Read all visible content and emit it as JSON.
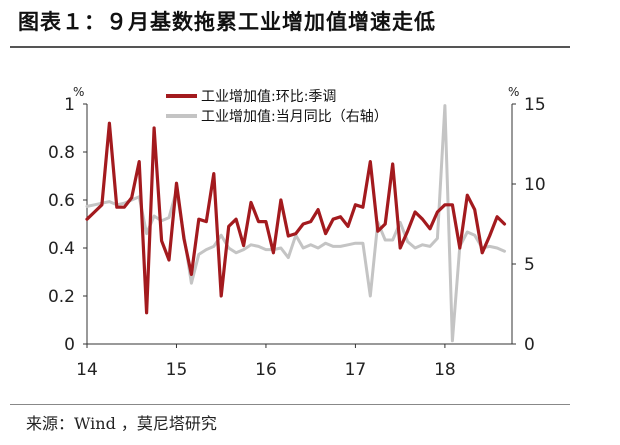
{
  "header": {
    "title": "图表１：９月基数拖累工业增加值增速走低"
  },
  "footer": {
    "source": "来源：Wind ，莫尼塔研究"
  },
  "colors": {
    "series_mom": "#A31A1E",
    "series_yoy": "#C4C4C4",
    "axis": "#333333"
  },
  "chart_data": {
    "type": "line",
    "title": "",
    "left_axis": {
      "unit": "%",
      "ylim": [
        0,
        1
      ],
      "ticks": [
        0,
        0.2,
        0.4,
        0.6,
        0.8,
        1
      ],
      "tick_labels": [
        "0",
        "0.2",
        "0.4",
        "0.6",
        "0.8",
        "1"
      ]
    },
    "right_axis": {
      "unit": "%",
      "ylim": [
        0,
        15
      ],
      "ticks": [
        0,
        5,
        10,
        15
      ],
      "tick_labels": [
        "0",
        "5",
        "10",
        "15"
      ]
    },
    "x_axis": {
      "range": [
        0,
        57
      ],
      "ticks": [
        0,
        12,
        24,
        36,
        48
      ],
      "tick_labels": [
        "14",
        "15",
        "16",
        "17",
        "18"
      ]
    },
    "legend_position": "top-center",
    "grid": false,
    "series": [
      {
        "name": "工业增加值:环比:季调",
        "axis": "left",
        "color": "#A31A1E",
        "values": [
          0.52,
          0.55,
          0.58,
          0.92,
          0.57,
          0.57,
          0.61,
          0.76,
          0.13,
          0.9,
          0.43,
          0.35,
          0.67,
          0.44,
          0.29,
          0.52,
          0.51,
          0.71,
          0.2,
          0.49,
          0.52,
          0.41,
          0.59,
          0.51,
          0.51,
          0.38,
          0.6,
          0.45,
          0.46,
          0.5,
          0.51,
          0.56,
          0.46,
          0.52,
          0.53,
          0.49,
          0.58,
          0.57,
          0.76,
          0.47,
          0.5,
          0.75,
          0.4,
          0.47,
          0.55,
          0.52,
          0.48,
          0.55,
          0.58,
          0.58,
          0.4,
          0.62,
          0.56,
          0.38,
          0.45,
          0.53,
          0.5
        ]
      },
      {
        "name": "工业增加值:当月同比（右轴）",
        "axis": "right",
        "color": "#C4C4C4",
        "values": [
          8.6,
          8.7,
          8.8,
          8.9,
          8.7,
          8.8,
          9.0,
          9.2,
          6.9,
          8.0,
          7.7,
          7.9,
          9.6,
          6.8,
          3.8,
          5.6,
          5.9,
          6.1,
          6.8,
          6.0,
          5.7,
          5.9,
          6.2,
          6.1,
          5.9,
          5.9,
          6.0,
          5.4,
          6.8,
          6.0,
          6.2,
          6.0,
          6.3,
          6.1,
          6.1,
          6.2,
          6.3,
          6.3,
          3.0,
          7.6,
          6.5,
          6.5,
          7.6,
          6.4,
          6.0,
          6.2,
          6.1,
          6.6,
          14.9,
          0.2,
          6.1,
          7.0,
          6.8,
          6.0,
          6.1,
          6.0,
          5.8
        ]
      }
    ]
  }
}
